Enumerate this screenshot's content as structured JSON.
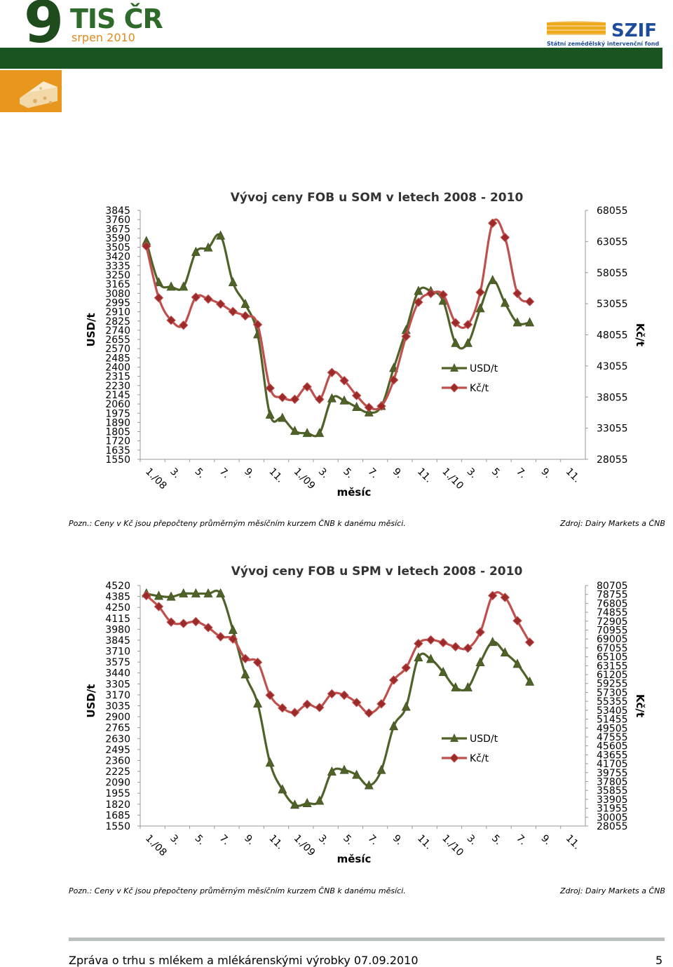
{
  "header": {
    "number": "9",
    "title": "TIS ČR",
    "date": "srpen 2010",
    "logo_text": "SZIF",
    "logo_subtitle": "Státní zemědělský intervenční fond",
    "colors": {
      "bar": "#1a5420",
      "accent": "#e08a1e"
    },
    "icon": "cheese-icon"
  },
  "chart_data": [
    {
      "type": "line",
      "title": "Vývoj ceny FOB u SOM v letech 2008 - 2010",
      "xlabel": "měsíc",
      "ylabel": "USD/t",
      "y2label": "Kč/t",
      "x_ticks": [
        "1./08",
        "3.",
        "5.",
        "7.",
        "9.",
        "11.",
        "1./09",
        "3.",
        "5.",
        "7.",
        "9.",
        "11.",
        "1./10",
        "3.",
        "5.",
        "7.",
        "9.",
        "11."
      ],
      "y_ticks": [
        "3845",
        "3760",
        "3675",
        "3590",
        "3505",
        "3420",
        "3335",
        "3250",
        "3165",
        "3080",
        "2995",
        "2910",
        "2825",
        "2740",
        "2655",
        "2570",
        "2485",
        "2400",
        "2315",
        "2230",
        "2145",
        "2060",
        "1975",
        "1890",
        "1805",
        "1720",
        "1635",
        "1550"
      ],
      "y2_ticks": [
        "68055",
        "63055",
        "58055",
        "53055",
        "48055",
        "43055",
        "38055",
        "33055",
        "28055"
      ],
      "ylim": [
        1550,
        3845
      ],
      "y2lim": [
        28055,
        68055
      ],
      "legend_position": "center-right",
      "series": [
        {
          "name": "USD/t",
          "axis": "left",
          "color": "#4a6b24",
          "marker": "triangle",
          "values": [
            3560,
            3180,
            3140,
            3140,
            3460,
            3500,
            3610,
            3180,
            2980,
            2700,
            1960,
            1930,
            1810,
            1790,
            1790,
            2110,
            2090,
            2030,
            1980,
            2040,
            2390,
            2740,
            3100,
            3100,
            3010,
            2620,
            2620,
            2940,
            3200,
            2990,
            2810,
            2810
          ]
        },
        {
          "name": "Kč/t",
          "axis": "right",
          "color": "#c0504d",
          "marker": "diamond",
          "values": [
            62300,
            54000,
            50400,
            49600,
            54100,
            53800,
            53000,
            51800,
            51100,
            49700,
            39500,
            38000,
            37700,
            39700,
            37700,
            42000,
            40700,
            38300,
            36400,
            36600,
            40800,
            47800,
            53300,
            54700,
            54500,
            50000,
            49700,
            54900,
            66000,
            63700,
            54700,
            53400
          ]
        }
      ]
    },
    {
      "type": "line",
      "title": "Vývoj ceny FOB u SPM v letech 2008 - 2010",
      "xlabel": "měsíc",
      "ylabel": "USD/t",
      "y2label": "Kč/t",
      "x_ticks": [
        "1./08",
        "3.",
        "5.",
        "7.",
        "9.",
        "11.",
        "1./09",
        "3.",
        "5.",
        "7.",
        "9.",
        "11.",
        "1./10",
        "3.",
        "5.",
        "7.",
        "9.",
        "11."
      ],
      "y_ticks": [
        "4520",
        "4385",
        "4250",
        "4115",
        "3980",
        "3845",
        "3710",
        "3575",
        "3440",
        "3305",
        "3170",
        "3035",
        "2900",
        "2765",
        "2630",
        "2495",
        "2360",
        "2225",
        "2090",
        "1955",
        "1820",
        "1685",
        "1550"
      ],
      "y2_ticks": [
        "80705",
        "78755",
        "76805",
        "74855",
        "72905",
        "70955",
        "69005",
        "67055",
        "65105",
        "63155",
        "61205",
        "59255",
        "57305",
        "55355",
        "53405",
        "51455",
        "49505",
        "47555",
        "45605",
        "43655",
        "41705",
        "39755",
        "37805",
        "35855",
        "33905",
        "31955",
        "30005",
        "28055"
      ],
      "ylim": [
        1550,
        4520
      ],
      "y2lim": [
        28055,
        80705
      ],
      "legend_position": "center-right",
      "series": [
        {
          "name": "USD/t",
          "axis": "left",
          "color": "#4a6b24",
          "marker": "triangle",
          "values": [
            4420,
            4390,
            4380,
            4420,
            4420,
            4420,
            4420,
            3970,
            3420,
            3060,
            2330,
            2000,
            1810,
            1830,
            1860,
            2220,
            2240,
            2180,
            2050,
            2240,
            2780,
            3020,
            3630,
            3610,
            3450,
            3260,
            3260,
            3570,
            3820,
            3690,
            3550,
            3330
          ]
        },
        {
          "name": "Kč/t",
          "axis": "right",
          "color": "#c0504d",
          "marker": "diamond",
          "values": [
            78500,
            76100,
            72700,
            72400,
            72800,
            71500,
            69500,
            69000,
            64700,
            63900,
            56700,
            53900,
            52900,
            54700,
            54000,
            57000,
            56700,
            55100,
            52800,
            54800,
            60000,
            62700,
            68000,
            68800,
            68200,
            67300,
            67000,
            70500,
            78500,
            78100,
            73000,
            68300
          ]
        }
      ]
    }
  ],
  "notes": {
    "note1": "Pozn.: Ceny v Kč jsou přepočteny průměrným měsíčním kurzem ČNB k danému měsíci.",
    "source1": "Zdroj: Dairy Markets a ČNB",
    "note2": "Pozn.: Ceny v Kč jsou přepočteny průměrným měsíčním kurzem ČNB k danému měsíci.",
    "source2": "Zdroj: Dairy Markets a ČNB"
  },
  "footer": {
    "text": "Zpráva o trhu s mlékem a mlékárenskými výrobky 07.09.2010",
    "page": "5"
  }
}
